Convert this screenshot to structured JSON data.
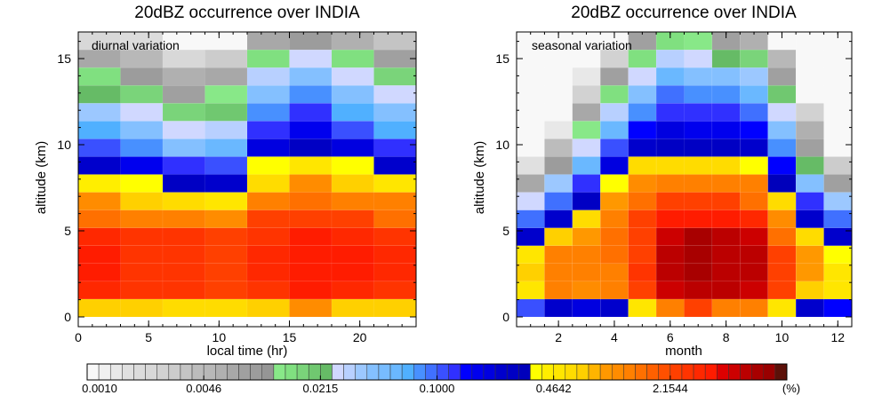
{
  "chart_data": [
    {
      "type": "heatmap",
      "title": "20dBZ occurrence over INDIA",
      "annotation": "diurnal variation",
      "xlabel": "local time (hr)",
      "ylabel": "altitude (km)",
      "xlim": [
        0,
        24
      ],
      "ylim": [
        0,
        16.5
      ],
      "xticks": [
        "0",
        "5",
        "10",
        "15",
        "20"
      ],
      "xtick_values": [
        0,
        5,
        10,
        15,
        20
      ],
      "yticks": [
        "0",
        "5",
        "10",
        "15"
      ],
      "ytick_values": [
        0,
        5,
        10,
        15
      ],
      "x_bins": [
        1.5,
        4.5,
        7.5,
        10.5,
        13.5,
        16.5,
        19.5,
        22.5
      ],
      "x_bin_width": 3,
      "z_rows_bottom_to_top": [
        [
          0.63,
          0.63,
          0.54,
          0.54,
          0.63,
          1.0,
          0.63,
          0.63
        ],
        [
          2.93,
          2.51,
          2.51,
          2.15,
          2.51,
          3.41,
          2.93,
          2.51
        ],
        [
          3.41,
          2.51,
          2.51,
          2.15,
          2.93,
          3.41,
          3.41,
          2.93
        ],
        [
          3.41,
          2.51,
          2.51,
          2.15,
          2.93,
          3.41,
          3.41,
          2.93
        ],
        [
          2.93,
          2.51,
          2.51,
          2.15,
          2.51,
          3.41,
          2.93,
          2.51
        ],
        [
          1.36,
          1.17,
          1.17,
          1.0,
          2.15,
          2.15,
          2.15,
          1.36
        ],
        [
          1.0,
          0.63,
          0.54,
          0.464,
          1.17,
          1.36,
          1.17,
          1.17
        ],
        [
          0.398,
          0.341,
          0.251,
          0.215,
          0.54,
          1.0,
          0.63,
          0.464
        ],
        [
          0.215,
          0.158,
          0.117,
          0.1,
          0.341,
          0.464,
          0.341,
          0.215
        ],
        [
          0.1,
          0.074,
          0.0398,
          0.054,
          0.185,
          0.251,
          0.185,
          0.117
        ],
        [
          0.063,
          0.0398,
          0.0251,
          0.0293,
          0.117,
          0.158,
          0.1,
          0.063
        ],
        [
          0.0341,
          0.0251,
          0.0158,
          0.0185,
          0.074,
          0.117,
          0.063,
          0.0398
        ],
        [
          0.0215,
          0.0158,
          0.0074,
          0.0117,
          0.0398,
          0.074,
          0.0398,
          0.0251
        ],
        [
          0.0136,
          0.0086,
          0.0054,
          0.0063,
          0.0293,
          0.0398,
          0.0251,
          0.0158
        ],
        [
          0.0063,
          0.00464,
          0.00215,
          0.00293,
          0.0136,
          0.0251,
          0.0136,
          0.0074
        ],
        [
          0.00215,
          0.00185,
          0.001,
          0.001,
          0.0063,
          0.0086,
          0.0054,
          0.00341
        ]
      ]
    },
    {
      "type": "heatmap",
      "title": "20dBZ occurrence over INDIA",
      "annotation": "seasonal variation",
      "xlabel": "month",
      "ylabel": "altitude (km)",
      "xlim": [
        0.5,
        12.5
      ],
      "ylim": [
        0,
        16.5
      ],
      "xticks": [
        "2",
        "4",
        "6",
        "8",
        "10",
        "12"
      ],
      "xtick_values": [
        2,
        4,
        6,
        8,
        10,
        12
      ],
      "yticks": [
        "0",
        "5",
        "10",
        "15"
      ],
      "ytick_values": [
        0,
        5,
        10,
        15
      ],
      "x_bins": [
        1,
        2,
        3,
        4,
        5,
        6,
        7,
        8,
        9,
        10,
        11,
        12
      ],
      "x_bin_width": 1,
      "z_rows_bottom_to_top": [
        [
          0.1,
          0.215,
          0.185,
          0.215,
          0.464,
          1.17,
          2.15,
          1.17,
          1.17,
          0.464,
          0.215,
          0.136
        ],
        [
          0.464,
          1.17,
          1.0,
          1.17,
          2.15,
          4.64,
          5.4,
          5.4,
          4.64,
          2.15,
          0.63,
          0.464
        ],
        [
          0.63,
          1.17,
          1.17,
          1.17,
          2.51,
          5.4,
          6.3,
          5.4,
          5.4,
          2.15,
          0.86,
          0.464
        ],
        [
          0.464,
          1.17,
          1.17,
          1.36,
          2.15,
          5.4,
          6.3,
          5.4,
          5.4,
          2.15,
          0.86,
          0.341
        ],
        [
          0.215,
          0.63,
          0.86,
          1.36,
          2.15,
          4.64,
          6.3,
          5.4,
          4.64,
          1.36,
          0.54,
          0.215
        ],
        [
          0.086,
          0.215,
          0.54,
          1.17,
          2.15,
          3.41,
          3.41,
          3.41,
          2.93,
          1.0,
          0.215,
          0.086
        ],
        [
          0.0251,
          0.086,
          0.251,
          0.86,
          1.36,
          2.15,
          2.15,
          2.15,
          1.36,
          0.54,
          0.117,
          0.0341
        ],
        [
          0.0063,
          0.0341,
          0.117,
          0.341,
          1.0,
          1.17,
          1.17,
          1.17,
          1.17,
          0.293,
          0.0398,
          0.0074
        ],
        [
          0.00158,
          0.0086,
          0.054,
          0.185,
          0.54,
          0.54,
          0.54,
          0.54,
          0.341,
          0.136,
          0.0215,
          0.00293
        ],
        [
          0.001,
          0.00398,
          0.0251,
          0.1,
          0.215,
          0.251,
          0.251,
          0.251,
          0.215,
          0.074,
          0.0074,
          0.001
        ],
        [
          0.001,
          0.00136,
          0.0117,
          0.054,
          0.136,
          0.185,
          0.158,
          0.158,
          0.136,
          0.0398,
          0.0054,
          0.001
        ],
        [
          0.001,
          0.001,
          0.0063,
          0.0293,
          0.074,
          0.117,
          0.117,
          0.117,
          0.086,
          0.0251,
          0.00251,
          0.001
        ],
        [
          0.001,
          0.001,
          0.00251,
          0.0136,
          0.0398,
          0.086,
          0.074,
          0.074,
          0.054,
          0.0185,
          0.001,
          0.001
        ],
        [
          0.001,
          0.001,
          0.00136,
          0.0074,
          0.0251,
          0.054,
          0.0398,
          0.0398,
          0.0341,
          0.0074,
          0.001,
          0.001
        ],
        [
          0.001,
          0.001,
          0.001,
          0.00251,
          0.0136,
          0.0293,
          0.0251,
          0.0215,
          0.0158,
          0.00464,
          0.001,
          0.001
        ],
        [
          0.001,
          0.001,
          0.001,
          0.001,
          0.0074,
          0.0136,
          0.0117,
          0.0074,
          0.0054,
          0.001,
          0.001,
          0.001
        ]
      ]
    }
  ],
  "colorbar": {
    "scale": "log",
    "min": 0.001,
    "max": 10,
    "levels_per_decade": 15,
    "tick_labels": [
      "0.0010",
      "0.0046",
      "0.0215",
      "0.1000",
      "0.4642",
      "2.1544"
    ],
    "unit": "(%)",
    "colors": [
      "#f8f8f8",
      "#f0f0f0",
      "#e8e8e8",
      "#e0e0e0",
      "#dcdcdc",
      "#d8d8d8",
      "#d2d2d2",
      "#cccccc",
      "#c4c4c4",
      "#bcbcbc",
      "#b8b8b8",
      "#b0b0b0",
      "#a8a8a8",
      "#a0a0a0",
      "#9c9c9c",
      "#959595",
      "#88e888",
      "#80e080",
      "#7ad47a",
      "#70c870",
      "#66bb66",
      "#d0d8ff",
      "#b8d0ff",
      "#9cc8ff",
      "#84c0ff",
      "#78bcff",
      "#6ab8ff",
      "#50b0ff",
      "#4890ff",
      "#4070ff",
      "#3a50ff",
      "#3030ff",
      "#0000ff",
      "#0000ee",
      "#0000e0",
      "#0000cc",
      "#0000c4",
      "#0000bb",
      "#ffff00",
      "#ffee00",
      "#ffe600",
      "#ffdc00",
      "#ffd000",
      "#ffb400",
      "#ff9800",
      "#ff8c00",
      "#ff8000",
      "#ff7000",
      "#ff6000",
      "#ff5000",
      "#ff4000",
      "#ff3400",
      "#ff2800",
      "#ff1c00",
      "#dd0000",
      "#cc0000",
      "#bb0000",
      "#a80000",
      "#990000",
      "#5c1008"
    ]
  }
}
